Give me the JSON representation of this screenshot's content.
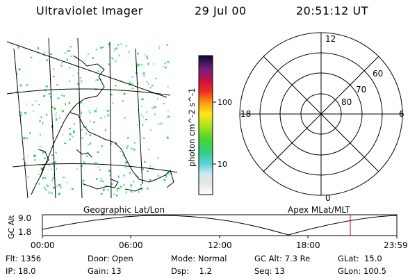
{
  "header": {
    "title": "Ultraviolet Imager",
    "date": "29 Jul 00",
    "time": "20:51:12 UT"
  },
  "colorbar": {
    "axis_label": "photon cm^-2 s^-1",
    "ticks": [
      "100",
      "10"
    ]
  },
  "polar": {
    "mlt_labels": [
      "12",
      "18",
      "6",
      "0"
    ],
    "lat_labels": [
      "60",
      "70",
      "80"
    ]
  },
  "map_label": "Geographic Lat/Lon",
  "polar_label": "Apex MLat/MLT",
  "timeline": {
    "axis_label": "GC Alt",
    "y_ticks": [
      "9.0",
      "1.8"
    ],
    "x_ticks": [
      "00:00",
      "06:00",
      "12:00",
      "18:00",
      "23:59"
    ],
    "marker_color": "#cc0000"
  },
  "info": {
    "flt": "Flt: 1356",
    "ip": "IP: 18.0",
    "door": "Door: Open",
    "gain": "Gain: 13",
    "mode": "Mode: Normal",
    "dsp": "Dsp:    1.2",
    "gc_alt": "GC Alt: 7.3 Re",
    "seq": "Seq: 13",
    "glat": "GLat:  15.0",
    "glon": "GLon: 100.5"
  }
}
